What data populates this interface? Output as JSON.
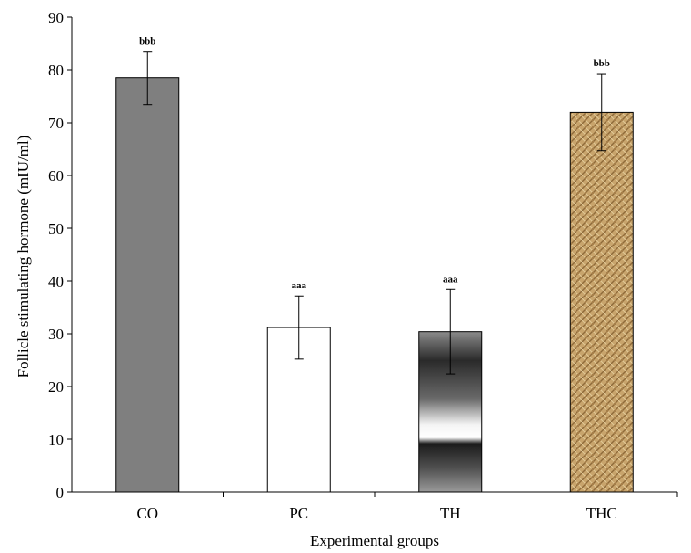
{
  "chart_data": {
    "type": "bar",
    "title": "",
    "xlabel": "Experimental groups",
    "ylabel": "Follicle stimulating hormone (mIU/ml)",
    "ylim": [
      0,
      90
    ],
    "yticks": [
      0,
      10,
      20,
      30,
      40,
      50,
      60,
      70,
      80,
      90
    ],
    "categories": [
      "CO",
      "PC",
      "TH",
      "THC"
    ],
    "values": [
      78.5,
      31.2,
      30.4,
      72.0
    ],
    "errors": [
      5.0,
      6.0,
      8.0,
      7.3
    ],
    "significance": [
      "bbb",
      "aaa",
      "aaa",
      "bbb"
    ],
    "grid": false,
    "legend": "none",
    "fills": [
      "solid-gray",
      "white",
      "gradient",
      "burlap-texture"
    ],
    "colors": {
      "solid_gray": "#7f7f7f",
      "outline": "#000000",
      "burlap": "#c8a46c"
    }
  }
}
